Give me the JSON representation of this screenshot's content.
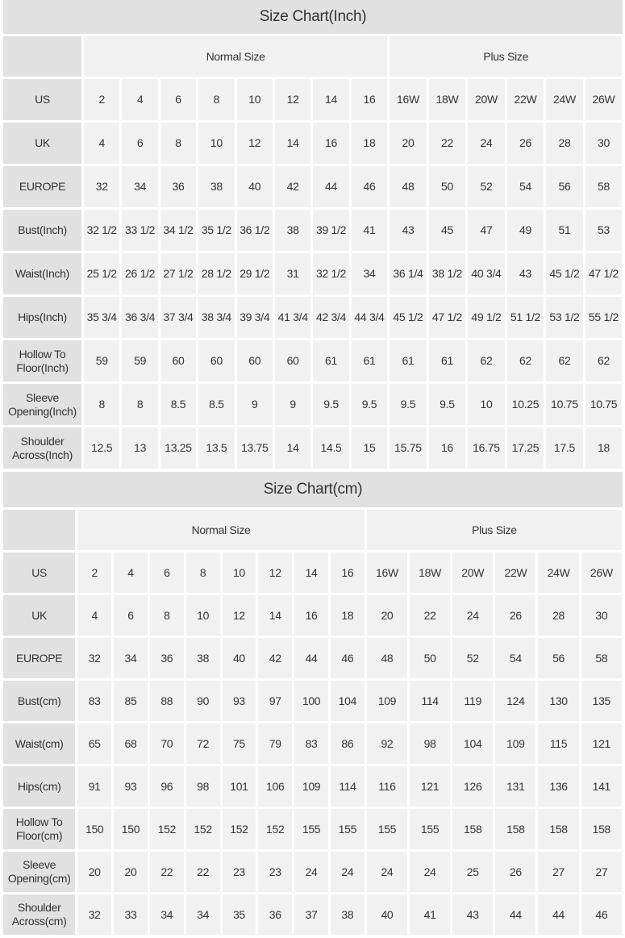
{
  "inch_table": {
    "title": "Size Chart(Inch)",
    "group_headers": [
      "Normal Size",
      "Plus Size"
    ],
    "rows": [
      {
        "label": "US",
        "values": [
          "2",
          "4",
          "6",
          "8",
          "10",
          "12",
          "14",
          "16",
          "16W",
          "18W",
          "20W",
          "22W",
          "24W",
          "26W"
        ]
      },
      {
        "label": "UK",
        "values": [
          "4",
          "6",
          "8",
          "10",
          "12",
          "14",
          "16",
          "18",
          "20",
          "22",
          "24",
          "26",
          "28",
          "30"
        ]
      },
      {
        "label": "EUROPE",
        "values": [
          "32",
          "34",
          "36",
          "38",
          "40",
          "42",
          "44",
          "46",
          "48",
          "50",
          "52",
          "54",
          "56",
          "58"
        ]
      },
      {
        "label": "Bust(Inch)",
        "values": [
          "32 1/2",
          "33 1/2",
          "34 1/2",
          "35 1/2",
          "36 1/2",
          "38",
          "39 1/2",
          "41",
          "43",
          "45",
          "47",
          "49",
          "51",
          "53"
        ]
      },
      {
        "label": "Waist(Inch)",
        "values": [
          "25 1/2",
          "26 1/2",
          "27 1/2",
          "28 1/2",
          "29 1/2",
          "31",
          "32 1/2",
          "34",
          "36 1/4",
          "38 1/2",
          "40 3/4",
          "43",
          "45 1/2",
          "47 1/2"
        ]
      },
      {
        "label": "Hips(Inch)",
        "values": [
          "35 3/4",
          "36 3/4",
          "37 3/4",
          "38 3/4",
          "39 3/4",
          "41 3/4",
          "42 3/4",
          "44 3/4",
          "45 1/2",
          "47 1/2",
          "49 1/2",
          "51 1/2",
          "53 1/2",
          "55 1/2"
        ]
      },
      {
        "label": "Hollow To Floor(Inch)",
        "values": [
          "59",
          "59",
          "60",
          "60",
          "60",
          "60",
          "61",
          "61",
          "61",
          "61",
          "62",
          "62",
          "62",
          "62"
        ]
      },
      {
        "label": "Sleeve Opening(Inch)",
        "values": [
          "8",
          "8",
          "8.5",
          "8.5",
          "9",
          "9",
          "9.5",
          "9.5",
          "9.5",
          "9.5",
          "10",
          "10.25",
          "10.75",
          "10.75"
        ]
      },
      {
        "label": "Shoulder Across(Inch)",
        "values": [
          "12.5",
          "13",
          "13.25",
          "13.5",
          "13.75",
          "14",
          "14.5",
          "15",
          "15.75",
          "16",
          "16.75",
          "17.25",
          "17.5",
          "18"
        ]
      }
    ]
  },
  "cm_table": {
    "title": "Size Chart(cm)",
    "group_headers": [
      "Normal Size",
      "Plus Size"
    ],
    "rows": [
      {
        "label": "US",
        "values": [
          "2",
          "4",
          "6",
          "8",
          "10",
          "12",
          "14",
          "16",
          "16W",
          "18W",
          "20W",
          "22W",
          "24W",
          "26W"
        ]
      },
      {
        "label": "UK",
        "values": [
          "4",
          "6",
          "8",
          "10",
          "12",
          "14",
          "16",
          "18",
          "20",
          "22",
          "24",
          "26",
          "28",
          "30"
        ]
      },
      {
        "label": "EUROPE",
        "values": [
          "32",
          "34",
          "36",
          "38",
          "40",
          "42",
          "44",
          "46",
          "48",
          "50",
          "52",
          "54",
          "56",
          "58"
        ]
      },
      {
        "label": "Bust(cm)",
        "values": [
          "83",
          "85",
          "88",
          "90",
          "93",
          "97",
          "100",
          "104",
          "109",
          "114",
          "119",
          "124",
          "130",
          "135"
        ]
      },
      {
        "label": "Waist(cm)",
        "values": [
          "65",
          "68",
          "70",
          "72",
          "75",
          "79",
          "83",
          "86",
          "92",
          "98",
          "104",
          "109",
          "115",
          "121"
        ]
      },
      {
        "label": "Hips(cm)",
        "values": [
          "91",
          "93",
          "96",
          "98",
          "101",
          "106",
          "109",
          "114",
          "116",
          "121",
          "126",
          "131",
          "136",
          "141"
        ]
      },
      {
        "label": "Hollow To Floor(cm)",
        "values": [
          "150",
          "150",
          "152",
          "152",
          "152",
          "152",
          "155",
          "155",
          "155",
          "155",
          "158",
          "158",
          "158",
          "158"
        ]
      },
      {
        "label": "Sleeve Opening(cm)",
        "values": [
          "20",
          "20",
          "22",
          "22",
          "23",
          "23",
          "24",
          "24",
          "24",
          "24",
          "25",
          "26",
          "27",
          "27"
        ]
      },
      {
        "label": "Shoulder Across(cm)",
        "values": [
          "32",
          "33",
          "34",
          "34",
          "35",
          "36",
          "37",
          "38",
          "40",
          "41",
          "43",
          "44",
          "44",
          "46"
        ]
      }
    ]
  }
}
